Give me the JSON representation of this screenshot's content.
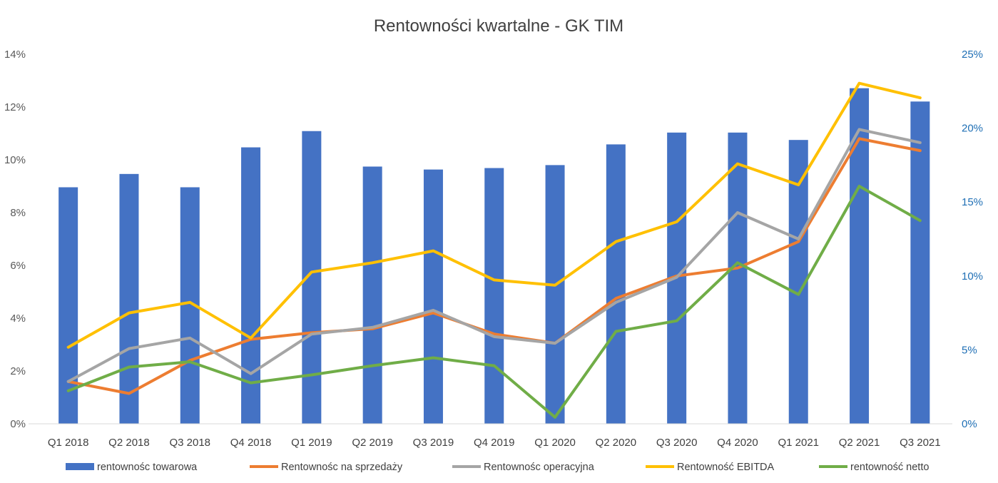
{
  "chart_data": {
    "type": "bar",
    "title": "Rentowności kwartalne - GK TIM",
    "categories": [
      "Q1 2018",
      "Q2 2018",
      "Q3 2018",
      "Q4 2018",
      "Q1 2019",
      "Q2 2019",
      "Q3 2019",
      "Q4 2019",
      "Q1 2020",
      "Q2 2020",
      "Q3 2020",
      "Q4 2020",
      "Q1 2021",
      "Q2 2021",
      "Q3 2021"
    ],
    "left_axis": {
      "ylim": [
        0,
        14
      ],
      "ticks": [
        "0%",
        "2%",
        "4%",
        "6%",
        "8%",
        "10%",
        "12%",
        "14%"
      ],
      "tick_values": [
        0,
        2,
        4,
        6,
        8,
        10,
        12,
        14
      ]
    },
    "right_axis": {
      "ylim": [
        0,
        25
      ],
      "ticks": [
        "0%",
        "5%",
        "10%",
        "15%",
        "20%",
        "25%"
      ],
      "tick_values": [
        0,
        5,
        10,
        15,
        20,
        25
      ]
    },
    "grid": false,
    "legend_position": "bottom",
    "series": [
      {
        "name": "rentownośc towarowa",
        "type": "bar",
        "axis": "right",
        "color": "#4472c4",
        "values": [
          16.0,
          16.9,
          16.0,
          18.7,
          19.8,
          17.4,
          17.2,
          17.3,
          17.5,
          18.9,
          19.7,
          19.7,
          19.2,
          22.7,
          21.8
        ]
      },
      {
        "name": "Rentownośc na sprzedaży",
        "type": "line",
        "axis": "left",
        "color": "#ed7d31",
        "values": [
          1.6,
          1.15,
          2.4,
          3.2,
          3.45,
          3.6,
          4.2,
          3.4,
          3.05,
          4.75,
          5.6,
          5.9,
          6.9,
          10.8,
          10.35
        ]
      },
      {
        "name": "Rentownośc operacyjna",
        "type": "line",
        "axis": "left",
        "color": "#a5a5a5",
        "values": [
          1.6,
          2.85,
          3.25,
          1.9,
          3.4,
          3.65,
          4.3,
          3.3,
          3.05,
          4.6,
          5.55,
          8.0,
          7.0,
          11.15,
          10.65
        ]
      },
      {
        "name": "Rentowność EBITDA",
        "type": "line",
        "axis": "left",
        "color": "#ffc000",
        "values": [
          2.9,
          4.2,
          4.6,
          3.25,
          5.75,
          6.1,
          6.55,
          5.45,
          5.25,
          6.9,
          7.65,
          9.85,
          9.05,
          12.9,
          12.35
        ]
      },
      {
        "name": "rentowność netto",
        "type": "line",
        "axis": "left",
        "color": "#70ad47",
        "values": [
          1.25,
          2.15,
          2.35,
          1.55,
          1.85,
          2.2,
          2.5,
          2.2,
          0.25,
          3.5,
          3.9,
          6.1,
          4.9,
          9.0,
          7.7
        ]
      }
    ]
  }
}
